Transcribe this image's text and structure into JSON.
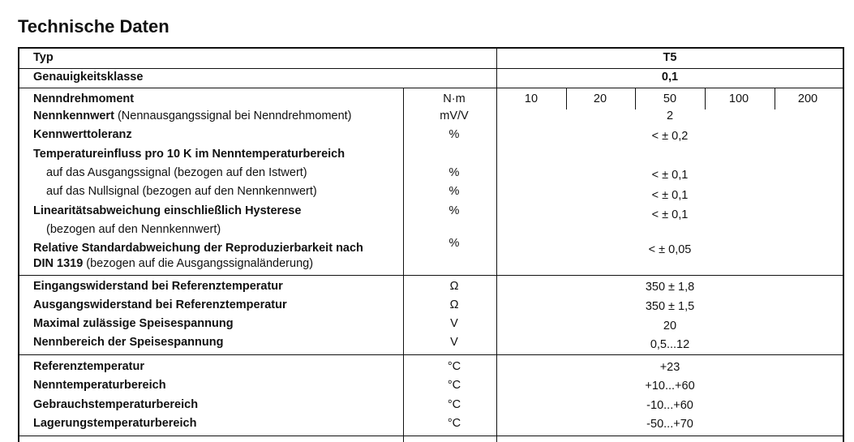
{
  "title": "Technische Daten",
  "header": {
    "typ_label": "Typ",
    "typ_value": "T5",
    "class_label": "Genauigkeitsklasse",
    "class_value": "0,1"
  },
  "section1": {
    "torque": {
      "label": "Nenndrehmoment",
      "unit": "N·m",
      "values": [
        "10",
        "20",
        "50",
        "100",
        "200"
      ]
    },
    "rows": [
      {
        "label_bold": "Nennkennwert",
        "label_rest": " (Nennausgangssignal bei Nenndrehmoment)",
        "unit": "mV/V",
        "value": "2"
      },
      {
        "label_bold": "Kennwerttoleranz",
        "label_rest": "",
        "unit": "%",
        "value": "< ± 0,2"
      },
      {
        "label_bold": "Temperatureinfluss pro 10 K im Nenntemperaturbereich",
        "label_rest": "",
        "unit": "",
        "value": ""
      },
      {
        "label_bold": "",
        "label_rest": "auf das Ausgangssignal (bezogen auf den Istwert)",
        "unit": "%",
        "value": "< ± 0,1"
      },
      {
        "label_bold": "",
        "label_rest": "auf das Nullsignal (bezogen auf den Nennkennwert)",
        "unit": "%",
        "value": "< ± 0,1"
      },
      {
        "label_bold": "Linearitätsabweichung einschließlich Hysterese",
        "label_rest": "",
        "unit": "%",
        "value": "< ± 0,1"
      },
      {
        "label_bold": "",
        "label_rest": "(bezogen auf den Nennkennwert)",
        "unit": "",
        "value": ""
      },
      {
        "label_bold": "Relative Standardabweichung der Reproduzierbarkeit nach",
        "label_rest": "",
        "unit": "%",
        "value": "< ± 0,05"
      },
      {
        "label_bold": "DIN 1319",
        "label_rest": " (bezogen auf die Ausgangssignaländerung)",
        "unit": "",
        "value": ""
      }
    ]
  },
  "section2": {
    "rows": [
      {
        "label_bold": "Eingangswiderstand bei Referenztemperatur",
        "unit": "Ω",
        "value": "350 ± 1,8"
      },
      {
        "label_bold": "Ausgangswiderstand bei Referenztemperatur",
        "unit": "Ω",
        "value": "350 ± 1,5"
      },
      {
        "label_bold": "Maximal zulässige Speisespannung",
        "unit": "V",
        "value": "20"
      },
      {
        "label_bold": "Nennbereich der Speisespannung",
        "unit": "V",
        "value": "0,5...12"
      }
    ]
  },
  "section3": {
    "rows": [
      {
        "label_bold": "Referenztemperatur",
        "unit": "°C",
        "value": "+23"
      },
      {
        "label_bold": "Nenntemperaturbereich",
        "unit": "°C",
        "value": "+10...+60"
      },
      {
        "label_bold": "Gebrauchstemperaturbereich",
        "unit": "°C",
        "value": "-10...+60"
      },
      {
        "label_bold": "Lagerungstemperaturbereich",
        "unit": "°C",
        "value": "-50...+70"
      }
    ]
  }
}
